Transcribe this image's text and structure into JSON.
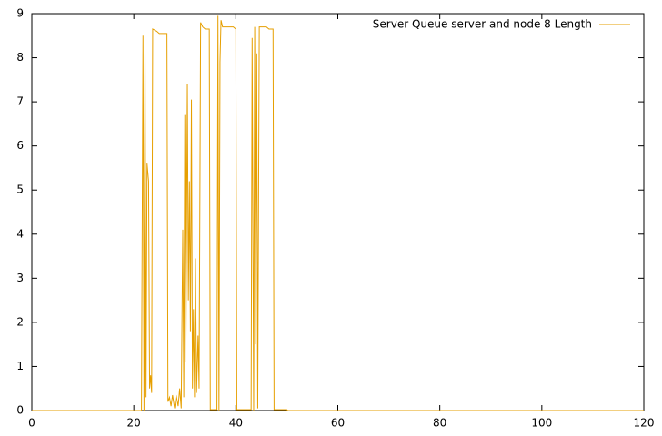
{
  "chart_data": {
    "type": "line",
    "legend_position": "top-right",
    "x": [
      0,
      21.5,
      21.8,
      22,
      22.2,
      22.4,
      22.6,
      22.9,
      23.1,
      23.3,
      23.5,
      23.7,
      24.5,
      25,
      26,
      26.5,
      26.7,
      27,
      27.3,
      27.6,
      28,
      28.3,
      28.7,
      29,
      29.3,
      29.6,
      29.8,
      30,
      30.2,
      30.5,
      30.7,
      30.9,
      31.1,
      31.3,
      31.5,
      31.7,
      31.9,
      32.1,
      32.3,
      32.6,
      32.8,
      33.1,
      33.5,
      34,
      34.8,
      35,
      36.3,
      36.5,
      36.7,
      36.9,
      37.1,
      37.4,
      39.5,
      40,
      40.2,
      43,
      43.2,
      43.5,
      43.7,
      43.9,
      44.1,
      44.3,
      44.6,
      46,
      46.5,
      47.3,
      47.5,
      50,
      50.2,
      120
    ],
    "series": [
      {
        "name": "Server Queue server and node 8 Length",
        "color": "#e69f00",
        "values": [
          0,
          0,
          8.5,
          0,
          8.2,
          0.3,
          5.6,
          5.2,
          0.5,
          0.8,
          0.4,
          8.65,
          8.6,
          8.55,
          8.55,
          8.55,
          0.2,
          0.3,
          0.1,
          0.35,
          0.05,
          0.35,
          0.1,
          0.5,
          0.05,
          4.1,
          0.3,
          6.7,
          1.1,
          7.4,
          2.5,
          5.2,
          1.8,
          7.05,
          0.5,
          2.3,
          0.3,
          3.45,
          0.4,
          1.7,
          0.5,
          8.8,
          8.7,
          8.65,
          8.65,
          0.02,
          0.02,
          8.95,
          0,
          7.9,
          8.85,
          8.7,
          8.7,
          8.65,
          0.02,
          0.02,
          8.45,
          0,
          8.7,
          1.5,
          8.1,
          0.05,
          8.7,
          8.7,
          8.65,
          8.65,
          0.02,
          0.02,
          0,
          0
        ]
      }
    ],
    "xlim": [
      0,
      120
    ],
    "xticks": [
      0,
      20,
      40,
      60,
      80,
      100,
      120
    ],
    "ylim": [
      0,
      9
    ],
    "yticks": [
      0,
      1,
      2,
      3,
      4,
      5,
      6,
      7,
      8,
      9
    ]
  }
}
